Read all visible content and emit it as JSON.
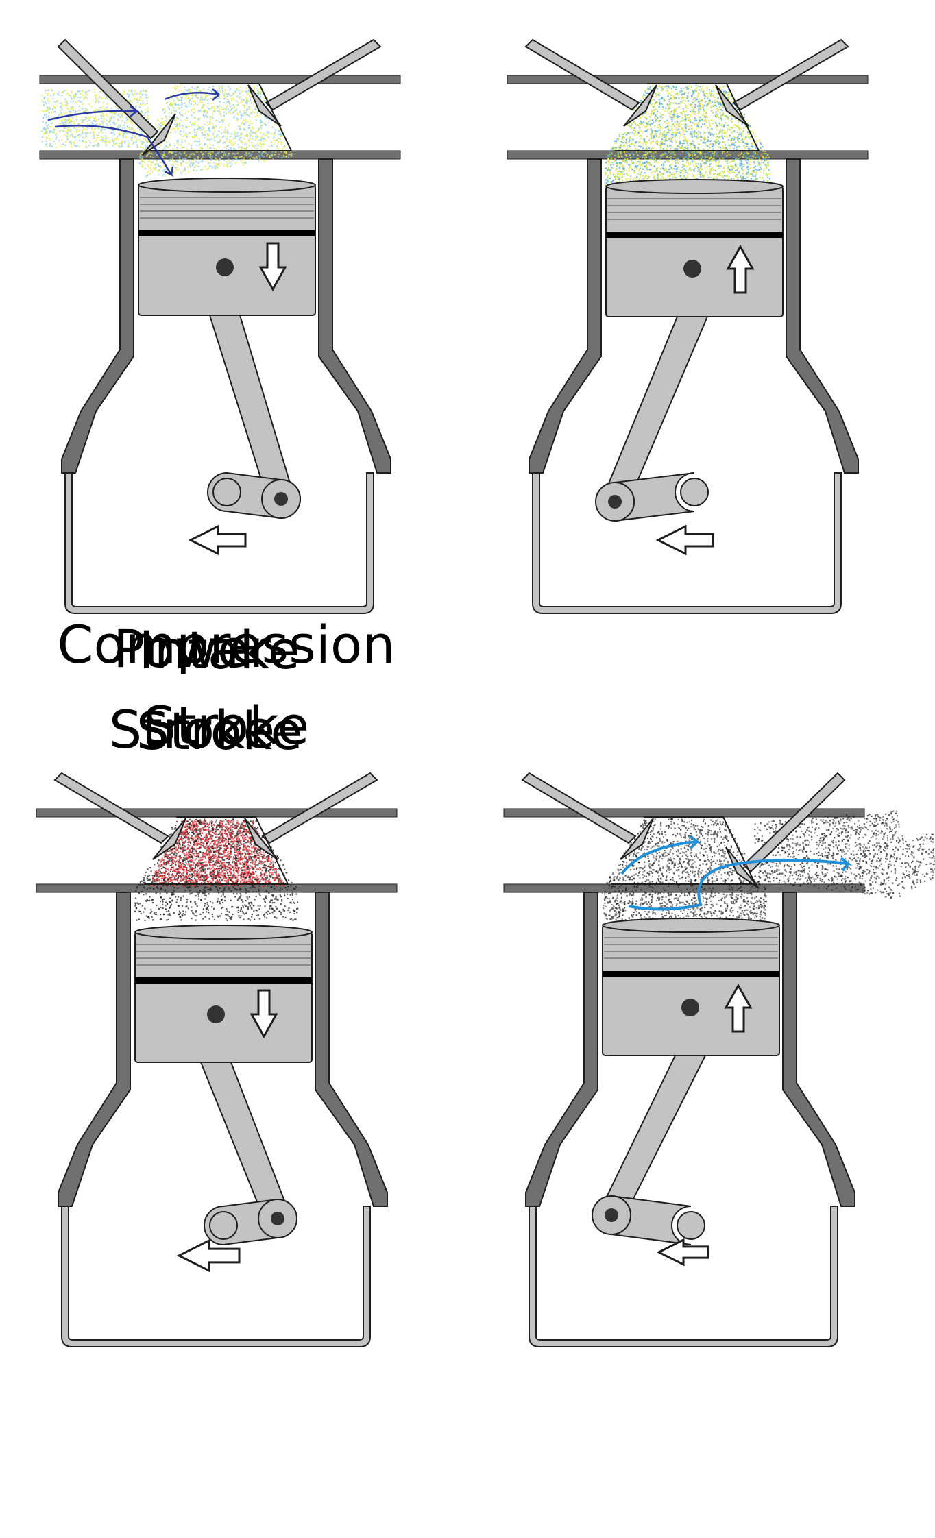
{
  "colors": {
    "metal_dark": "#707070",
    "metal_light": "#c3c3c3",
    "outline": "#1e1e1e",
    "ring": "#000000",
    "intake_charge": "#e8ec4a",
    "intake_charge_2": "#8fd0e8",
    "intake_arrows": "#2a3aa0",
    "compressed_charge": "#b8d84a",
    "compressed_charge_2": "#4aa8e0",
    "combustion": "#d8202a",
    "exhaust_gas": "#202020",
    "exhaust_arrows": "#2090d8"
  },
  "strokes": [
    {
      "id": "intake",
      "caption_line1": "Intake",
      "caption_line2": "Stroke",
      "piston_direction": "down",
      "crank_rotation_arrow": "left",
      "intake_valve": "open",
      "exhaust_valve": "closed",
      "chamber_contents": "fuel-air mixture flowing in"
    },
    {
      "id": "compression",
      "caption_line1": "Compression",
      "caption_line2": "Stroke",
      "piston_direction": "up",
      "crank_rotation_arrow": "left",
      "intake_valve": "closed",
      "exhaust_valve": "closed",
      "chamber_contents": "compressed mixture"
    },
    {
      "id": "power",
      "caption_line1": "Power",
      "caption_line2": "Stroke",
      "piston_direction": "down",
      "crank_rotation_arrow": "left",
      "intake_valve": "closed",
      "exhaust_valve": "closed",
      "chamber_contents": "combustion"
    },
    {
      "id": "exhaust",
      "caption_line1": "",
      "caption_line2": "",
      "piston_direction": "up",
      "crank_rotation_arrow": "left",
      "intake_valve": "closed",
      "exhaust_valve": "open",
      "chamber_contents": "exhaust gases flowing out"
    }
  ]
}
